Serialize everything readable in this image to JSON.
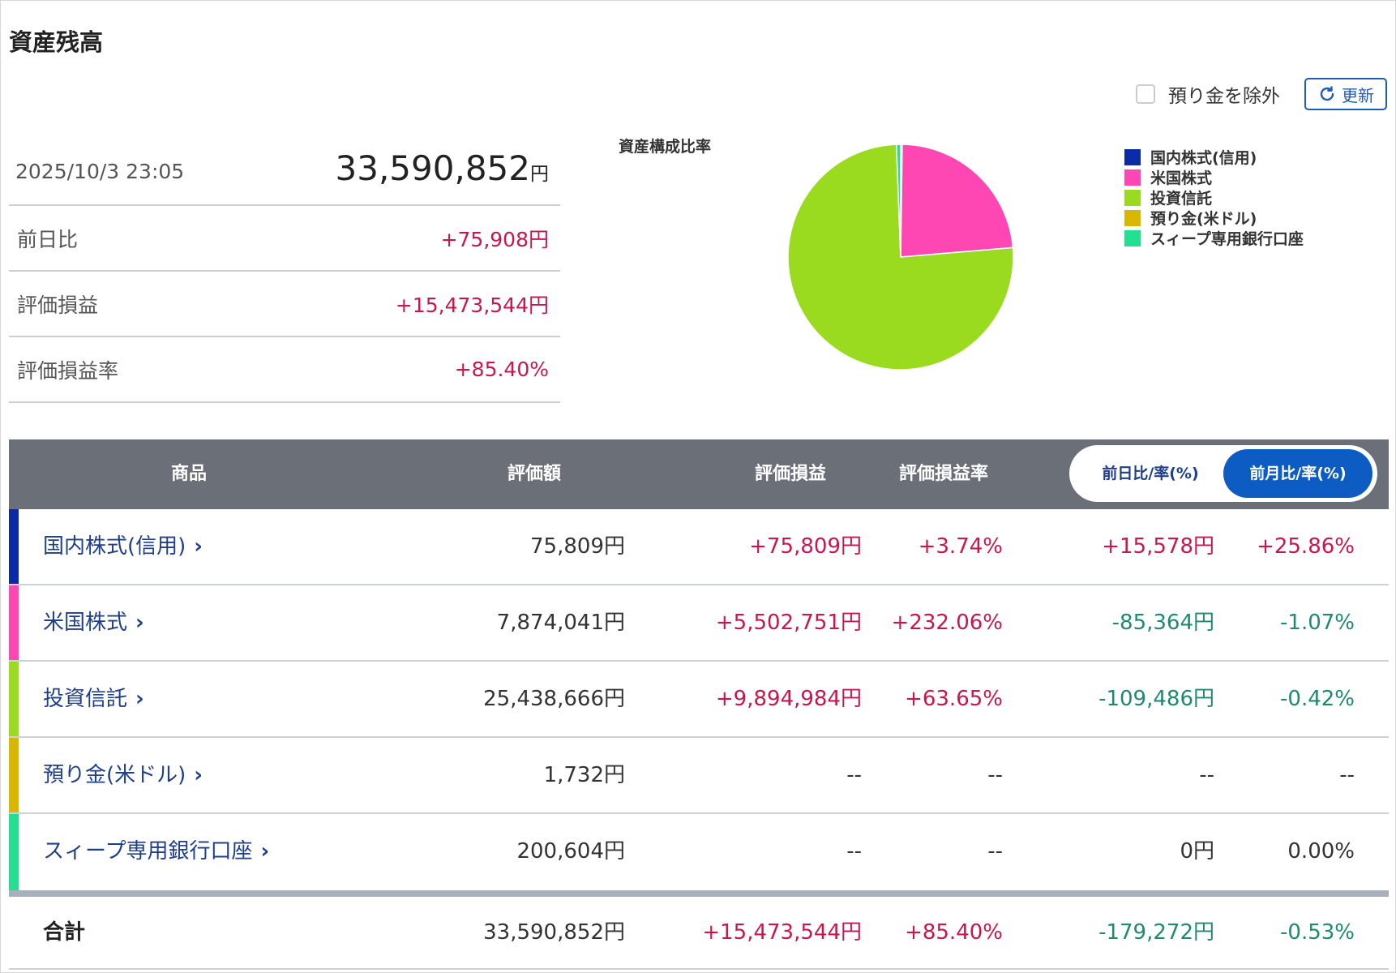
{
  "page_title": "資産残高",
  "toolbar": {
    "exclude_deposit_label": "預り金を除外",
    "refresh_label": "更新"
  },
  "summary": {
    "datetime": "2025/10/3 23:05",
    "total_amount": "33,590,852",
    "total_unit": "円",
    "rows": [
      {
        "label": "前日比",
        "value": "+75,908円"
      },
      {
        "label": "評価損益",
        "value": "+15,473,544円"
      },
      {
        "label": "評価損益率",
        "value": "+85.40%"
      }
    ]
  },
  "chart_data": {
    "type": "pie",
    "title": "資産構成比率",
    "legend_position": "right",
    "categories": [
      "国内株式(信用)",
      "米国株式",
      "投資信託",
      "預り金(米ドル)",
      "スィープ専用銀行口座"
    ],
    "values": [
      75809,
      7874041,
      25438666,
      1732,
      200604
    ],
    "colors": [
      "#0a2aa8",
      "#ff47b4",
      "#9bdb1f",
      "#d9b700",
      "#22e08f"
    ]
  },
  "table": {
    "headers": {
      "product": "商品",
      "valuation": "評価額",
      "gain": "評価損益",
      "gain_rate": "評価損益率"
    },
    "toggle": {
      "day_label": "前日比/率(%)",
      "month_label": "前月比/率(%)",
      "selected": "month"
    },
    "rows": [
      {
        "name": "国内株式(信用)",
        "chevron": "›",
        "color": "#0a2aa8",
        "valuation": "75,809円",
        "gain": "+75,809円",
        "gain_rate": "+3.74%",
        "change": "+15,578円",
        "change_rate": "+25.86%"
      },
      {
        "name": "米国株式",
        "chevron": "›",
        "color": "#ff47b4",
        "valuation": "7,874,041円",
        "gain": "+5,502,751円",
        "gain_rate": "+232.06%",
        "change": "-85,364円",
        "change_rate": "-1.07%"
      },
      {
        "name": "投資信託",
        "chevron": "›",
        "color": "#9bdb1f",
        "valuation": "25,438,666円",
        "gain": "+9,894,984円",
        "gain_rate": "+63.65%",
        "change": "-109,486円",
        "change_rate": "-0.42%"
      },
      {
        "name": "預り金(米ドル)",
        "chevron": "›",
        "color": "#d9b700",
        "valuation": "1,732円",
        "gain": "--",
        "gain_rate": "--",
        "change": "--",
        "change_rate": "--"
      },
      {
        "name": "スィープ専用銀行口座",
        "chevron": "›",
        "color": "#22e08f",
        "valuation": "200,604円",
        "gain": "--",
        "gain_rate": "--",
        "change": "0円",
        "change_rate": "0.00%"
      }
    ],
    "total": {
      "label": "合計",
      "valuation": "33,590,852円",
      "gain": "+15,473,544円",
      "gain_rate": "+85.40%",
      "change": "-179,272円",
      "change_rate": "-0.53%"
    }
  }
}
